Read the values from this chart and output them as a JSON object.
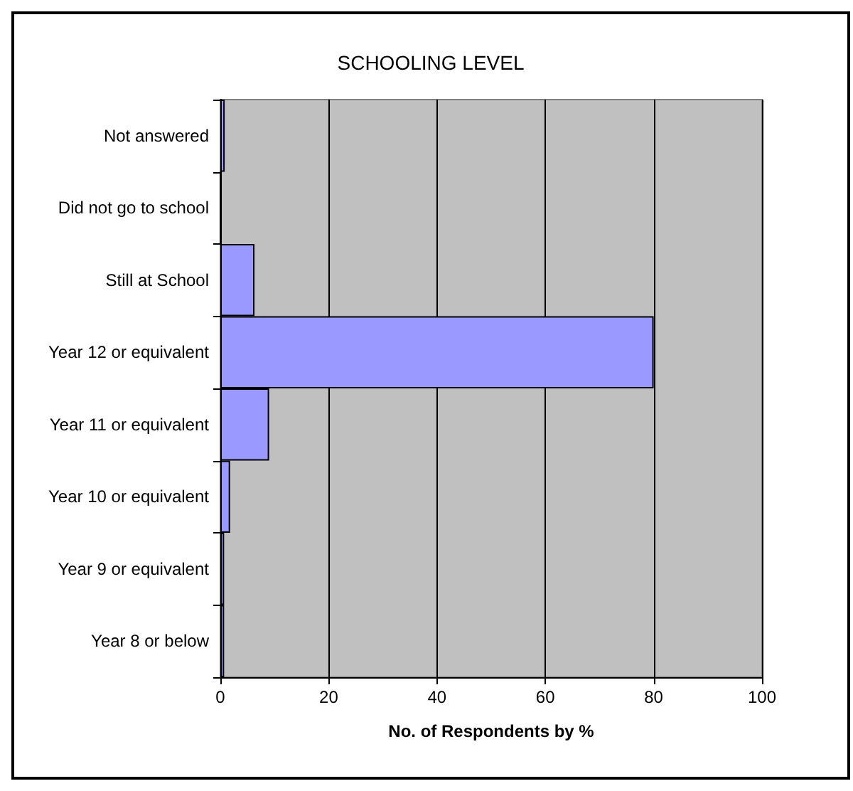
{
  "chart_data": {
    "type": "bar",
    "orientation": "horizontal",
    "title": "SCHOOLING LEVEL",
    "xlabel": "No. of Respondents by %",
    "categories": [
      "Not answered",
      "Did not go to school",
      "Still at School",
      "Year 12 or equivalent",
      "Year 11 or equivalent",
      "Year 10 or equivalent",
      "Year 9 or equivalent",
      "Year 8 or below"
    ],
    "values": [
      0.8,
      0,
      6.3,
      80,
      9,
      1.8,
      0.7,
      0.7
    ],
    "color": "#9999ff",
    "xlim": [
      0,
      100
    ],
    "xticks": [
      0,
      20,
      40,
      60,
      80,
      100
    ],
    "grid": "x"
  }
}
